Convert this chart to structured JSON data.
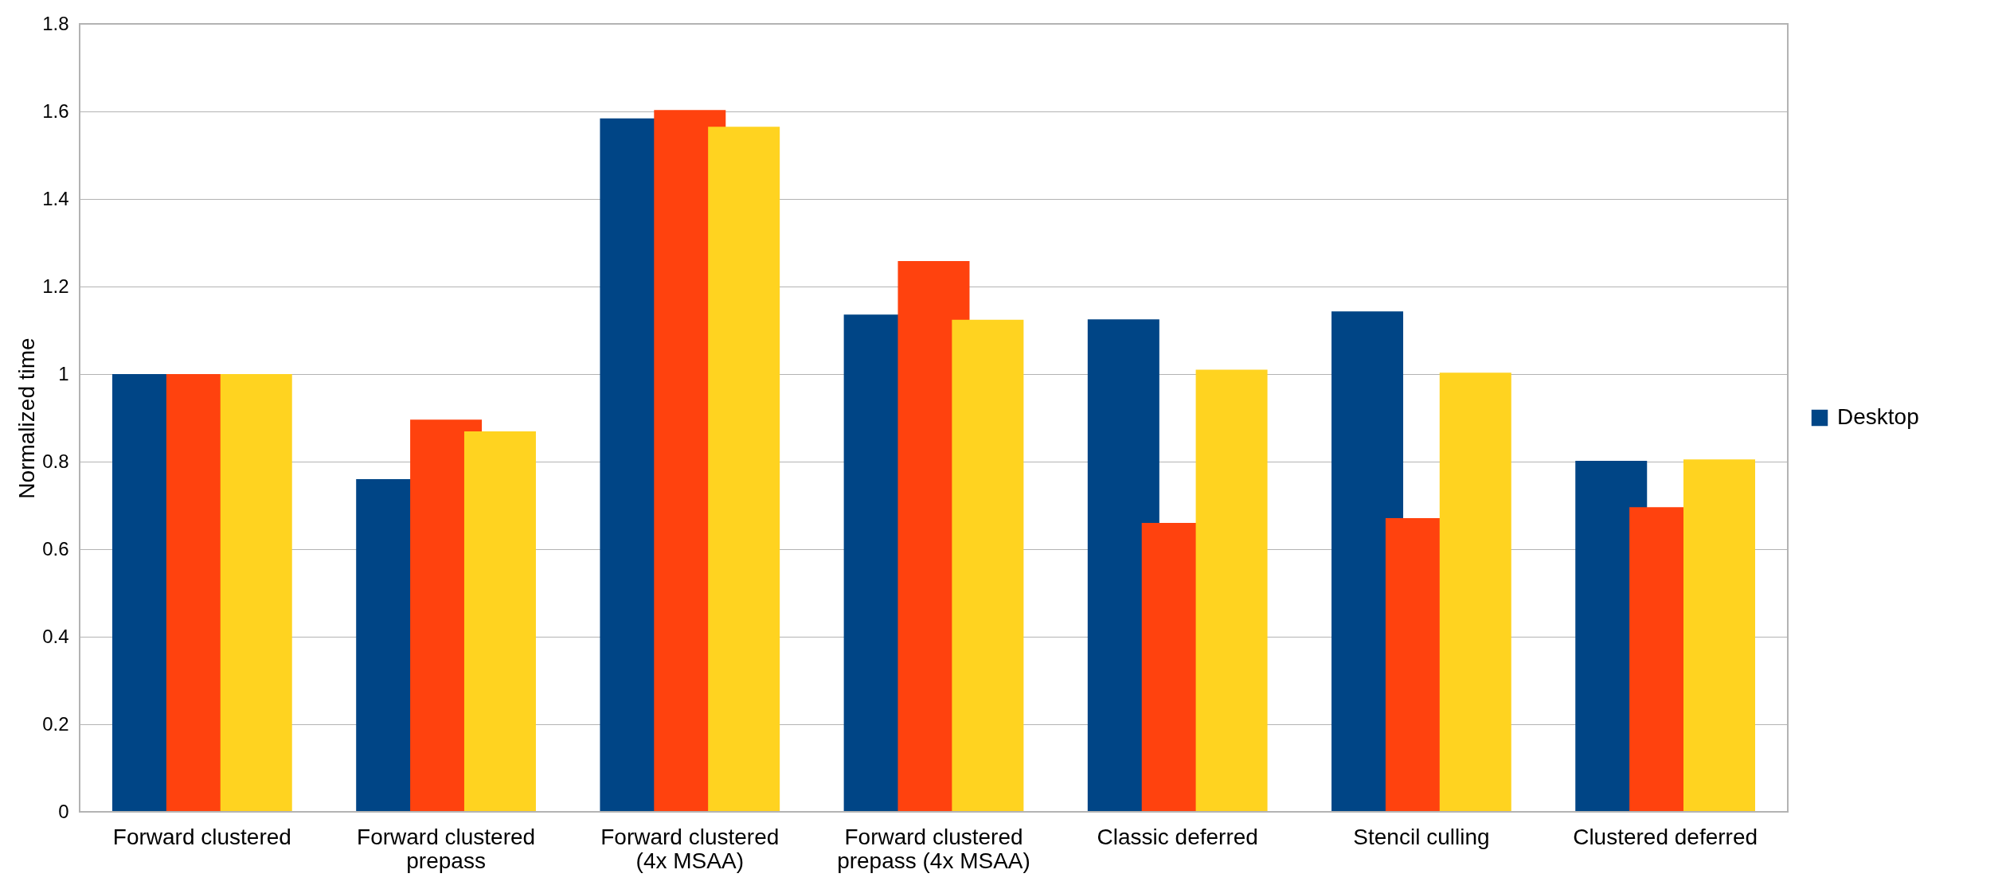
{
  "chart_data": {
    "type": "bar",
    "ylabel": "Normalized time",
    "categories": [
      "Forward clustered",
      "Forward clustered prepass",
      "Forward clustered (4x MSAA)",
      "Forward clustered prepass (4x MSAA)",
      "Classic deferred",
      "Stencil culling",
      "Clustered deferred"
    ],
    "series": [
      {
        "name": "Desktop",
        "color": "#004586",
        "values": [
          1.0,
          0.76,
          1.584,
          1.136,
          1.125,
          1.143,
          0.802
        ]
      },
      {
        "color": "#ff420e",
        "values": [
          1.0,
          0.896,
          1.603,
          1.258,
          0.66,
          0.671,
          0.696
        ]
      },
      {
        "color": "#ffd320",
        "values": [
          1.0,
          0.869,
          1.565,
          1.124,
          1.01,
          1.003,
          0.805
        ]
      }
    ],
    "ylim": [
      0,
      1.8
    ],
    "yticks": [
      0,
      0.2,
      0.4,
      0.6,
      0.8,
      1,
      1.2,
      1.4,
      1.6,
      1.8
    ],
    "grid": "y",
    "legend": "right"
  }
}
